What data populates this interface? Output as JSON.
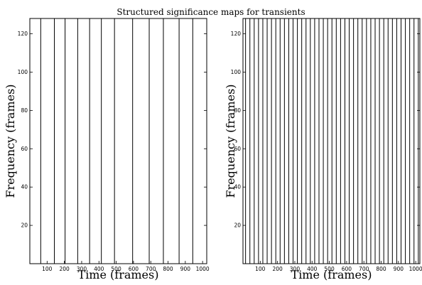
{
  "figure_title": "Structured significance maps for transients",
  "chart_data": [
    {
      "type": "line",
      "panel": "left",
      "xlabel": "Time (frames)",
      "ylabel": "Frequency (frames)",
      "xlim": [
        0,
        1024
      ],
      "ylim": [
        0,
        128
      ],
      "xticks": [
        100,
        200,
        300,
        400,
        500,
        600,
        700,
        800,
        900,
        1000
      ],
      "yticks": [
        20,
        40,
        60,
        80,
        100,
        120
      ],
      "vertical_lines_at": [
        63,
        142,
        204,
        277,
        346,
        414,
        490,
        595,
        691,
        773,
        864,
        943
      ]
    },
    {
      "type": "line",
      "panel": "right",
      "xlabel": "Time (frames)",
      "ylabel": "Frequency (frames)",
      "xlim": [
        0,
        1024
      ],
      "ylim": [
        0,
        128
      ],
      "xticks": [
        100,
        200,
        300,
        400,
        500,
        600,
        700,
        800,
        900,
        1000
      ],
      "yticks": [
        20,
        40,
        60,
        80,
        100,
        120
      ],
      "vertical_lines_at": [
        15,
        40,
        65,
        90,
        115,
        140,
        165,
        190,
        215,
        240,
        265,
        290,
        315,
        340,
        365,
        390,
        415,
        440,
        465,
        490,
        515,
        540,
        565,
        590,
        615,
        640,
        665,
        690,
        715,
        740,
        765,
        790,
        815,
        840,
        865,
        890,
        915,
        940,
        965,
        990,
        1015
      ]
    }
  ]
}
